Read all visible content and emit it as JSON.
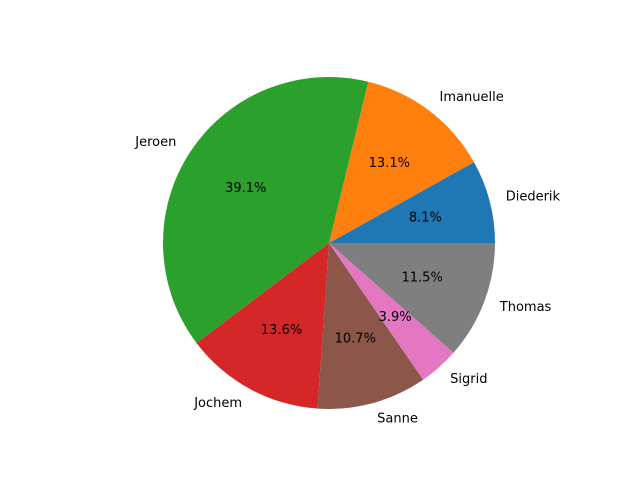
{
  "chart_data": {
    "type": "pie",
    "slices": [
      {
        "label": "Diederik",
        "value": 8.1,
        "pct_label": "8.1%",
        "color": "#1f77b4"
      },
      {
        "label": "Imanuelle",
        "value": 13.1,
        "pct_label": "13.1%",
        "color": "#ff7f0e"
      },
      {
        "label": "Jeroen",
        "value": 39.1,
        "pct_label": "39.1%",
        "color": "#2ca02c"
      },
      {
        "label": "Jochem",
        "value": 13.6,
        "pct_label": "13.6%",
        "color": "#d62728"
      },
      {
        "label": "Sanne",
        "value": 10.7,
        "pct_label": "10.7%",
        "color": "#8c564b"
      },
      {
        "label": "Sigrid",
        "value": 3.9,
        "pct_label": "3.9%",
        "color": "#e377c2"
      },
      {
        "label": "Thomas",
        "value": 11.5,
        "pct_label": "11.5%",
        "color": "#7f7f7f"
      }
    ],
    "start_angle_deg": 0,
    "direction": "counterclockwise",
    "legend": "none"
  }
}
